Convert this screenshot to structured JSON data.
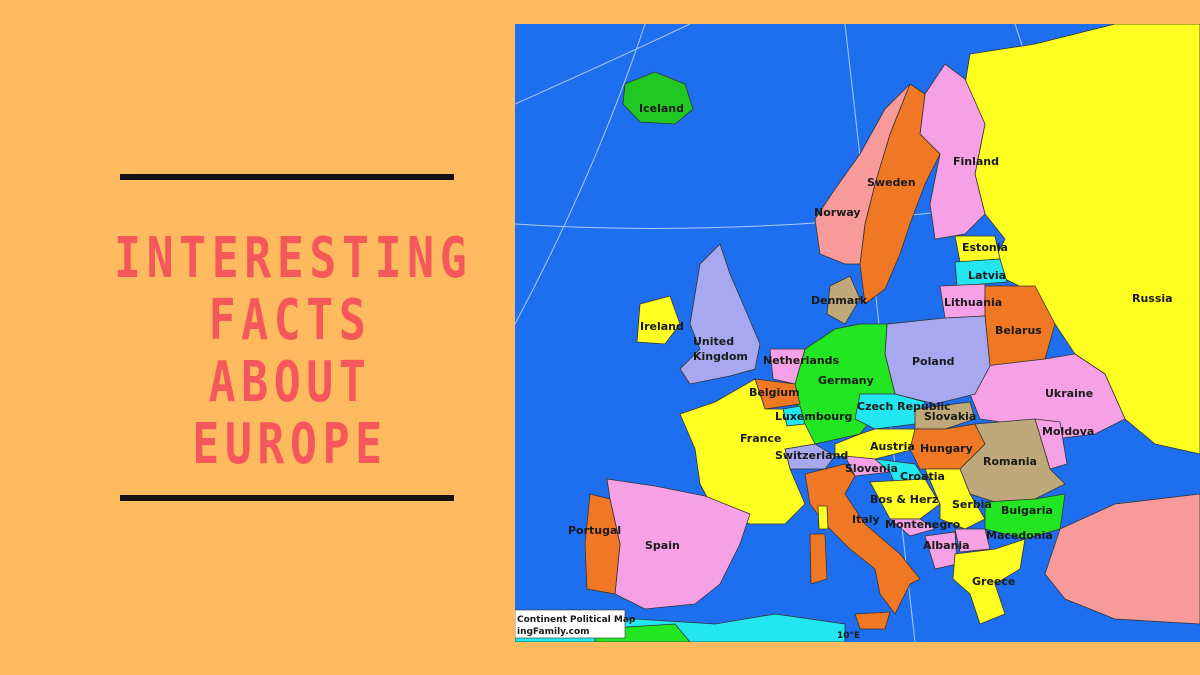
{
  "title": {
    "line1": "INTERESTING",
    "line2": "FACTS ABOUT",
    "line3": "EUROPE"
  },
  "colors": {
    "background": "#FDBA5E",
    "title": "#F4585A",
    "rule": "#111111",
    "sea": "#1E6FF0"
  },
  "map": {
    "labels": {
      "iceland": "Iceland",
      "finland": "Finland",
      "sweden": "Sweden",
      "norway": "Norway",
      "russia": "Russia",
      "estonia": "Estonia",
      "latvia": "Latvia",
      "lithuania": "Lithuania",
      "denmark": "Denmark",
      "belarus": "Belarus",
      "ireland": "Ireland",
      "uk_line1": "United",
      "uk_line2": "Kingdom",
      "netherlands": "Netherlands",
      "germany": "Germany",
      "poland": "Poland",
      "ukraine": "Ukraine",
      "belgium": "Belgium",
      "luxembourg": "Luxembourg",
      "czech": "Czech Republic",
      "slovakia": "Slovakia",
      "moldova": "Moldova",
      "france": "France",
      "austria": "Austria",
      "hungary": "Hungary",
      "romania": "Romania",
      "switzerland": "Switzerland",
      "slovenia": "Slovenia",
      "croatia": "Croatia",
      "bosnia": "Bos & Herz",
      "serbia": "Serbia",
      "bulgaria": "Bulgaria",
      "portugal": "Portugal",
      "spain": "Spain",
      "italy": "Italy",
      "montenegro": "Montenegro",
      "macedonia": "Macedonia",
      "albania": "Albania",
      "greece": "Greece"
    },
    "credit": {
      "line1": "Continent Political Map",
      "line2": "ingFamily.com"
    },
    "meridian": "10°E"
  }
}
